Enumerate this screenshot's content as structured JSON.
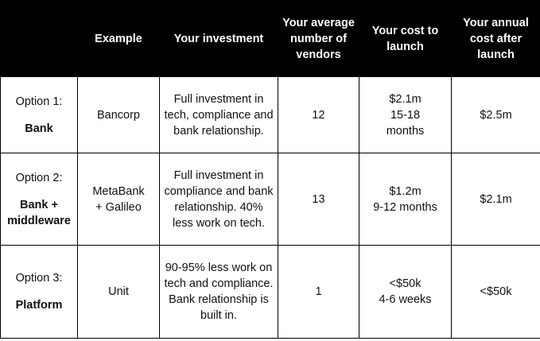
{
  "headers": {
    "option": "",
    "example": "Example",
    "investment": "Your investment",
    "vendors": "Your average number of vendors",
    "cost_launch": "Your cost to launch",
    "annual_cost": "Your annual cost after launch"
  },
  "rows": [
    {
      "option_prefix": "Option 1:",
      "option_name": "Bank",
      "example": "Bancorp",
      "investment": "Full investment in tech, compliance and bank relationship.",
      "vendors": "12",
      "cost_launch": "$2.1m\n15-18\nmonths",
      "annual_cost": "$2.5m"
    },
    {
      "option_prefix": "Option 2:",
      "option_name": "Bank +\nmiddleware",
      "example": "MetaBank\n+ Galileo",
      "investment": "Full investment in compliance and bank relationship. 40% less work on tech.",
      "vendors": "13",
      "cost_launch": "$1.2m\n9-12 months",
      "annual_cost": "$2.1m"
    },
    {
      "option_prefix": "Option 3:",
      "option_name": "Platform",
      "example": "Unit",
      "investment": "90-95% less work on tech and compliance. Bank relationship is built in.",
      "vendors": "1",
      "cost_launch": "<$50k\n4-6 weeks",
      "annual_cost": "<$50k"
    }
  ]
}
